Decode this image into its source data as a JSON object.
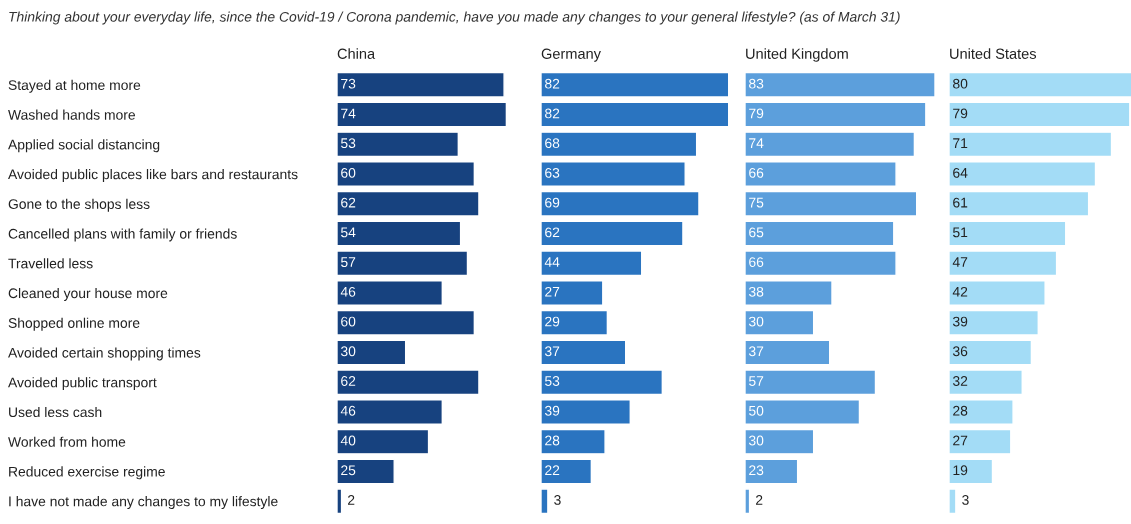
{
  "chart_data": [
    {
      "type": "bar",
      "orientation": "horizontal",
      "title": "China",
      "annotations": [
        "Thinking about your everyday life, since the Covid-19 / Corona pandemic, have you made any changes to your general lifestyle? (as of March 31)"
      ],
      "categories": [
        "Stayed at home more",
        "Washed hands more",
        "Applied social distancing",
        "Avoided public places like bars and restaurants",
        "Gone to the shops less",
        "Cancelled plans with family or friends",
        "Travelled less",
        "Cleaned your house more",
        "Shopped online more",
        "Avoided certain shopping times",
        "Avoided public transport",
        "Used less cash",
        "Worked from home",
        "Reduced exercise regime",
        "I have not made any changes to my lifestyle"
      ],
      "values": [
        73,
        74,
        53,
        60,
        62,
        54,
        57,
        46,
        60,
        30,
        62,
        46,
        40,
        25,
        2
      ],
      "color": "#17427f",
      "data_labels": true,
      "tick_labels": "y",
      "grid": false
    },
    {
      "type": "bar",
      "orientation": "horizontal",
      "title": "Germany",
      "categories": [
        null,
        null,
        null,
        null,
        null,
        null,
        null,
        null,
        null,
        null,
        null,
        null,
        null,
        null,
        null
      ],
      "values": [
        82,
        82,
        68,
        63,
        69,
        62,
        44,
        27,
        29,
        37,
        53,
        39,
        28,
        22,
        3
      ],
      "color": "#2a74c0",
      "data_labels": true,
      "tick_labels": false,
      "grid": false
    },
    {
      "type": "bar",
      "orientation": "horizontal",
      "title": "United Kingdom",
      "categories": [
        null,
        null,
        null,
        null,
        null,
        null,
        null,
        null,
        null,
        null,
        null,
        null,
        null,
        null,
        null
      ],
      "values": [
        83,
        79,
        74,
        66,
        75,
        65,
        66,
        38,
        30,
        37,
        57,
        50,
        30,
        23,
        2
      ],
      "color": "#5c9fdc",
      "data_labels": true,
      "tick_labels": false,
      "grid": false
    },
    {
      "type": "bar",
      "orientation": "horizontal",
      "title": "United States",
      "categories": [
        null,
        null,
        null,
        null,
        null,
        null,
        null,
        null,
        null,
        null,
        null,
        null,
        null,
        null,
        null
      ],
      "values": [
        80,
        79,
        71,
        64,
        61,
        51,
        47,
        42,
        39,
        36,
        32,
        28,
        27,
        19,
        3
      ],
      "color": "#a3dcf6",
      "data_labels": true,
      "tick_labels": false,
      "grid": false
    }
  ]
}
